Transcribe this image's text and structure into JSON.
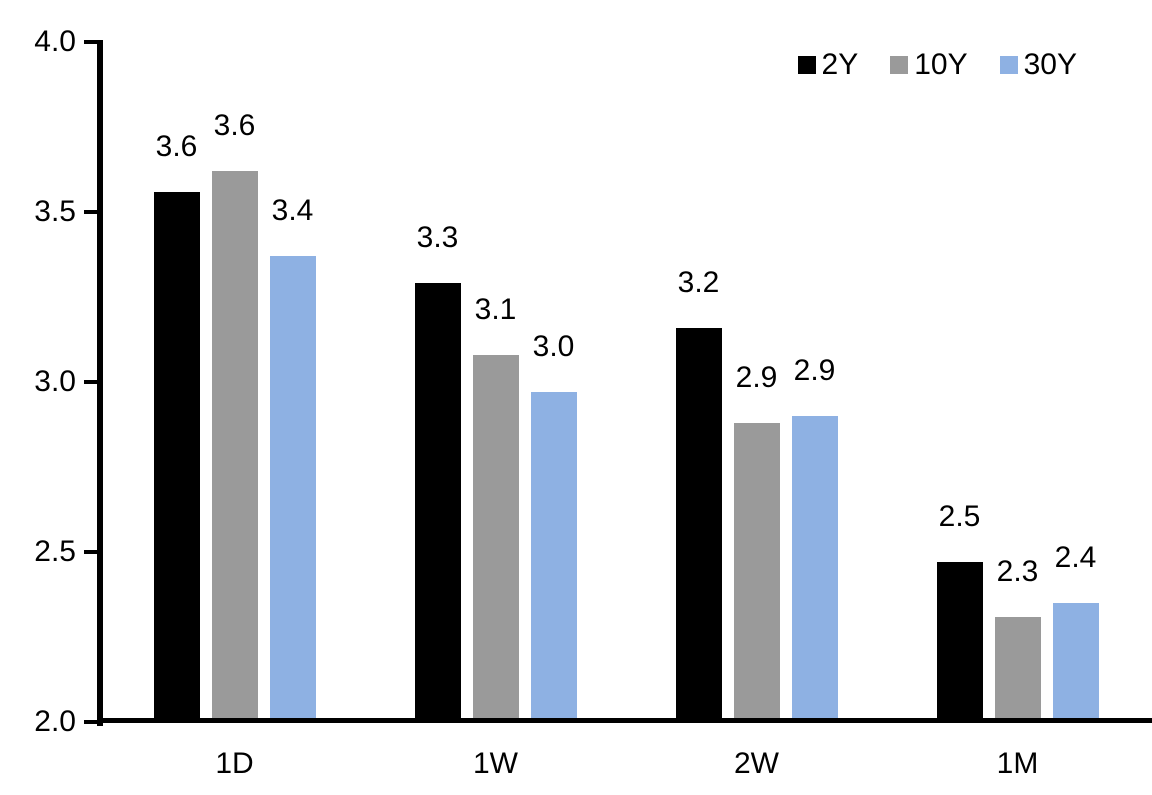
{
  "chart_data": {
    "type": "bar",
    "title": "",
    "xlabel": "",
    "ylabel": "",
    "categories": [
      "1D",
      "1W",
      "2W",
      "1M"
    ],
    "series": [
      {
        "name": "2Y",
        "color": "#000000",
        "values": [
          3.56,
          3.29,
          3.16,
          2.47
        ],
        "labels": [
          "3.6",
          "3.3",
          "3.2",
          "2.5"
        ]
      },
      {
        "name": "10Y",
        "color": "#9a9a9a",
        "values": [
          3.62,
          3.08,
          2.88,
          2.31
        ],
        "labels": [
          "3.6",
          "3.1",
          "2.9",
          "2.3"
        ]
      },
      {
        "name": "30Y",
        "color": "#8eb1e3",
        "values": [
          3.37,
          2.97,
          2.9,
          2.35
        ],
        "labels": [
          "3.4",
          "3.0",
          "2.9",
          "2.4"
        ]
      }
    ],
    "ylim": [
      2.0,
      4.0
    ],
    "yticks": [
      4.0,
      3.5,
      3.0,
      2.5,
      2.0
    ],
    "ytick_labels": [
      "4.0",
      "3.5",
      "3.0",
      "2.5",
      "2.0"
    ],
    "grid": false,
    "legend_position": "top-right",
    "axis_color": "#000000",
    "text_color": "#000000"
  }
}
